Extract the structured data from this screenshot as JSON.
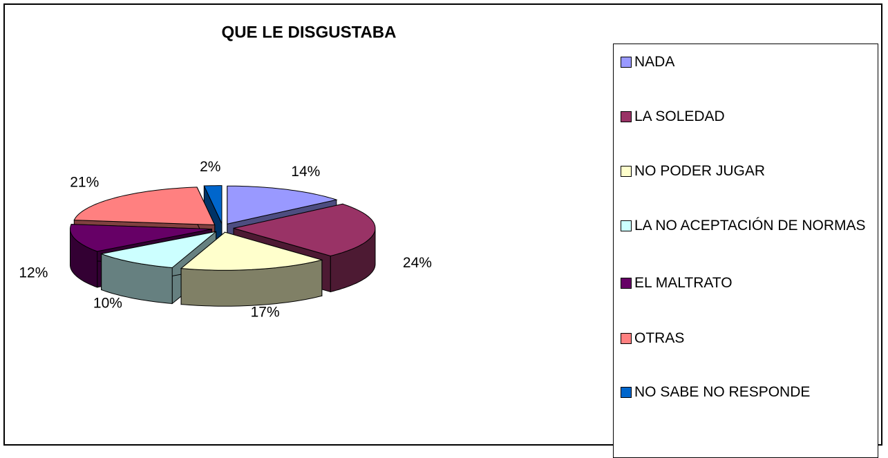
{
  "chart_data": {
    "type": "pie",
    "title": "QUE LE DISGUSTABA",
    "categories": [
      "NADA",
      "LA SOLEDAD",
      "NO PODER JUGAR",
      "LA NO ACEPTACIÓN DE NORMAS",
      "EL MALTRATO",
      "OTRAS",
      "NO SABE NO RESPONDE"
    ],
    "values": [
      14,
      24,
      17,
      10,
      12,
      21,
      2
    ],
    "value_labels": [
      "14%",
      "24%",
      "17%",
      "10%",
      "12%",
      "21%",
      "2%"
    ],
    "colors": [
      "#9999ff",
      "#993366",
      "#ffffcc",
      "#ccffff",
      "#660066",
      "#ff8080",
      "#0066cc"
    ],
    "legend": "right"
  }
}
